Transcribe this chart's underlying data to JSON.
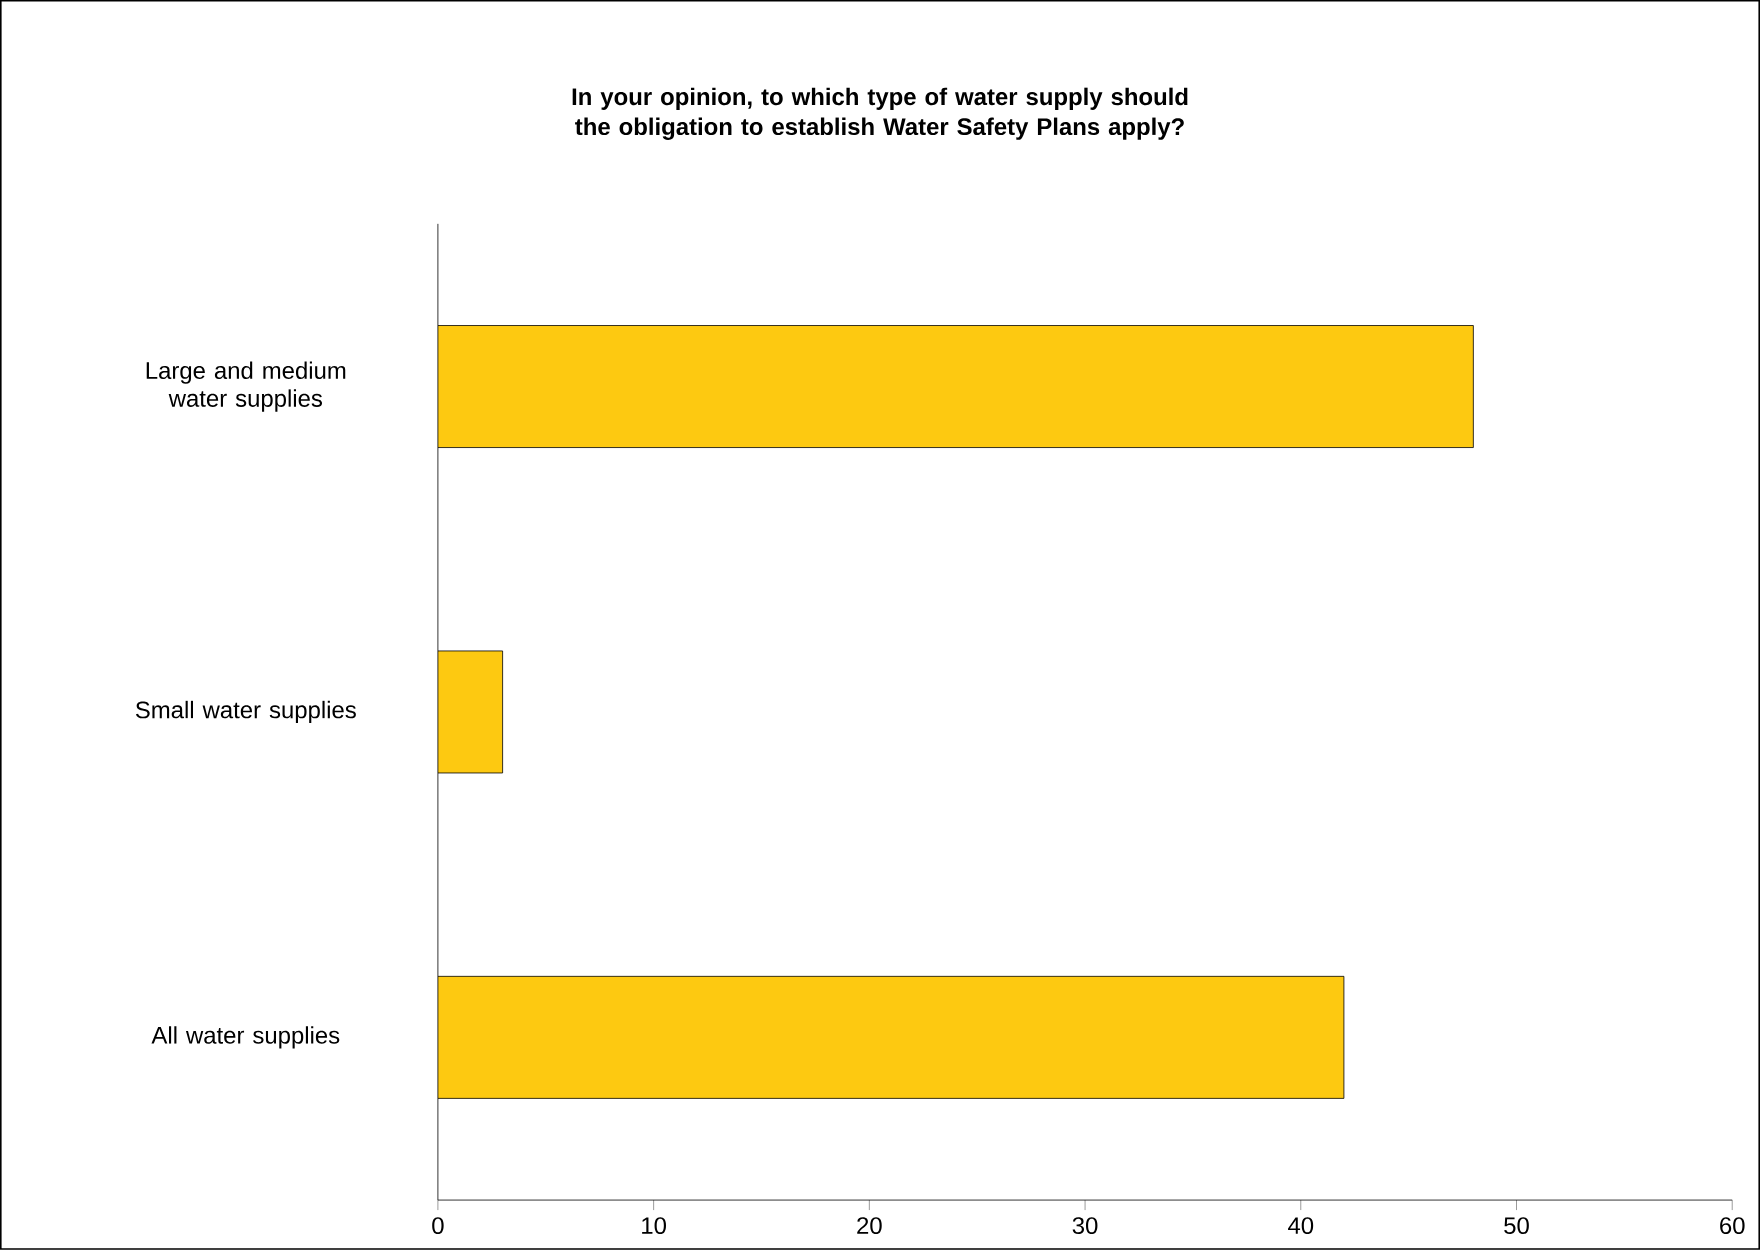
{
  "chart_data": {
    "type": "bar",
    "orientation": "horizontal",
    "title": "In your opinion, to which type of water supply should the obligation to establish Water Safety Plans apply?",
    "categories": [
      "Large and medium water supplies",
      "Small water supplies",
      "All water supplies"
    ],
    "values": [
      48,
      3,
      42
    ],
    "color": "#fdc911",
    "xlim": [
      0,
      60
    ],
    "xticks": [
      0,
      10,
      20,
      30,
      40,
      50,
      60
    ],
    "grid": false
  }
}
